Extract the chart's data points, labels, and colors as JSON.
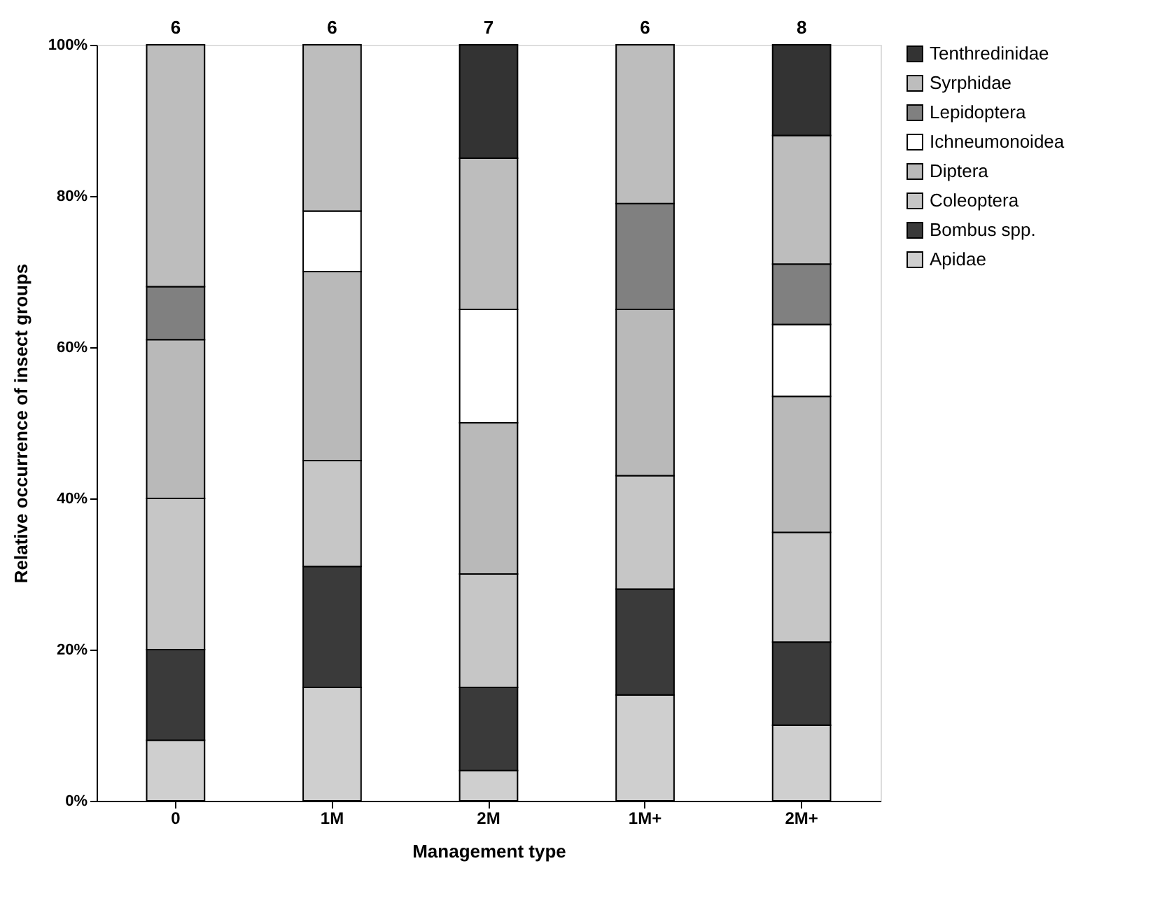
{
  "chart_data": {
    "type": "bar",
    "stacked": true,
    "xlabel": "Management type",
    "ylabel": "Relative occurrence of insect groups",
    "categories": [
      "0",
      "1M",
      "2M",
      "1M+",
      "2M+"
    ],
    "series": [
      {
        "name": "Apidae",
        "color": "#cfcfcf",
        "values": [
          8,
          15,
          4,
          14,
          10
        ]
      },
      {
        "name": "Bombus spp.",
        "color": "#3a3a3a",
        "values": [
          12,
          16,
          11,
          14,
          11
        ]
      },
      {
        "name": "Coleoptera",
        "color": "#c6c6c6",
        "values": [
          20,
          14,
          15,
          15,
          14.5
        ]
      },
      {
        "name": "Diptera",
        "color": "#b9b9b9",
        "values": [
          21,
          25,
          20,
          22,
          18
        ]
      },
      {
        "name": "Ichneumonoidea",
        "color": "#ffffff",
        "values": [
          null,
          8,
          15,
          null,
          9.5
        ]
      },
      {
        "name": "Lepidoptera",
        "color": "#808080",
        "values": [
          7,
          null,
          null,
          14,
          8
        ]
      },
      {
        "name": "Syrphidae",
        "color": "#bdbdbd",
        "values": [
          32,
          22,
          20,
          21,
          17
        ]
      },
      {
        "name": "Tenthredinidae",
        "color": "#333333",
        "values": [
          null,
          null,
          15,
          null,
          12
        ]
      }
    ],
    "annotations": [
      {
        "text": "6",
        "x": "0",
        "y": 100
      },
      {
        "text": "6",
        "x": "1M",
        "y": 100
      },
      {
        "text": "7",
        "x": "2M",
        "y": 100
      },
      {
        "text": "6",
        "x": "1M+",
        "y": 100
      },
      {
        "text": "8",
        "x": "2M+",
        "y": 100
      }
    ],
    "ylim": [
      0,
      100
    ],
    "yticks": [
      {
        "value": 0,
        "label": "0%"
      },
      {
        "value": 20,
        "label": "20%"
      },
      {
        "value": 40,
        "label": "40%"
      },
      {
        "value": 60,
        "label": "60%"
      },
      {
        "value": 80,
        "label": "80%"
      },
      {
        "value": 100,
        "label": "100%"
      }
    ],
    "grid": false,
    "legend": "right"
  }
}
